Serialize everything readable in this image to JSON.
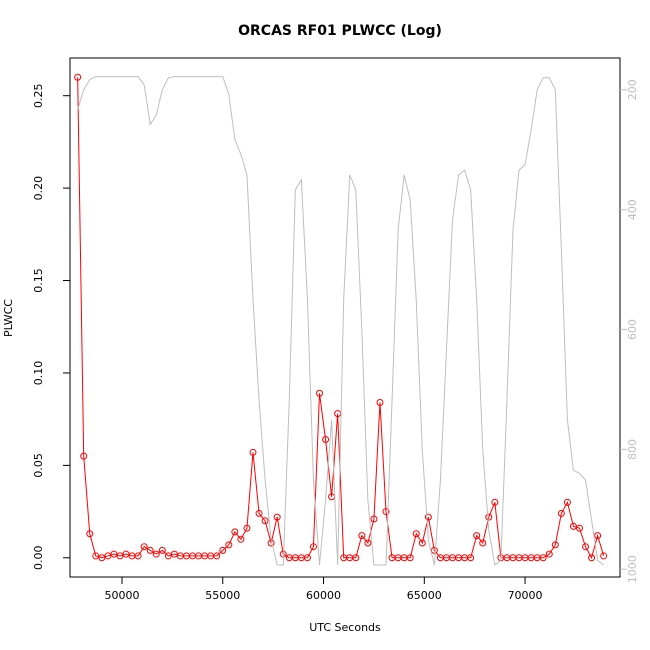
{
  "chart_data": {
    "type": "line",
    "title": "ORCAS RF01 PLWCC (Log)",
    "x_label": "UTC Seconds",
    "y_label": "PLWCC",
    "x": [
      47800,
      48100,
      48400,
      48700,
      49000,
      49300,
      49600,
      49900,
      50200,
      50500,
      50800,
      51100,
      51400,
      51700,
      52000,
      52300,
      52600,
      52900,
      53200,
      53500,
      53800,
      54100,
      54400,
      54700,
      55000,
      55300,
      55600,
      55900,
      56200,
      56500,
      56800,
      57100,
      57400,
      57700,
      58000,
      58300,
      58600,
      58900,
      59200,
      59500,
      59800,
      60100,
      60400,
      60700,
      61000,
      61300,
      61600,
      61900,
      62200,
      62500,
      62800,
      63100,
      63400,
      63700,
      64000,
      64300,
      64600,
      64900,
      65200,
      65500,
      65800,
      66100,
      66400,
      66700,
      67000,
      67300,
      67600,
      67900,
      68200,
      68500,
      68800,
      69100,
      69400,
      69700,
      70000,
      70300,
      70600,
      70900,
      71200,
      71500,
      71800,
      72100,
      72400,
      72700,
      73000,
      73300,
      73600,
      73900
    ],
    "series": [
      {
        "color": "#ff0000",
        "markers": true,
        "axis": "y",
        "values": [
          0.26,
          0.055,
          0.013,
          0.001,
          0.0,
          0.001,
          0.002,
          0.001,
          0.002,
          0.001,
          0.001,
          0.006,
          0.004,
          0.002,
          0.004,
          0.001,
          0.002,
          0.001,
          0.001,
          0.001,
          0.001,
          0.001,
          0.001,
          0.001,
          0.004,
          0.007,
          0.014,
          0.01,
          0.016,
          0.057,
          0.024,
          0.02,
          0.008,
          0.022,
          0.002,
          0.0,
          0.0,
          0.0,
          0.0,
          0.006,
          0.089,
          0.064,
          0.033,
          0.078,
          0.0,
          0.0,
          0.0,
          0.012,
          0.008,
          0.021,
          0.084,
          0.025,
          0.0,
          0.0,
          0.0,
          0.0,
          0.013,
          0.008,
          0.022,
          0.004,
          0.0,
          0.0,
          0.0,
          0.0,
          0.0,
          0.0,
          0.012,
          0.008,
          0.022,
          0.03,
          0.0,
          0.0,
          0.0,
          0.0,
          0.0,
          0.0,
          0.0,
          0.0,
          0.002,
          0.007,
          0.024,
          0.03,
          0.017,
          0.016,
          0.006,
          0.0,
          0.012,
          0.001
        ]
      },
      {
        "color": "#bebebe",
        "markers": false,
        "axis": "y2",
        "values": [
          233,
          200,
          183,
          178,
          178,
          178,
          178,
          178,
          178,
          178,
          178,
          192,
          258,
          242,
          200,
          180,
          178,
          178,
          178,
          178,
          178,
          178,
          178,
          178,
          178,
          208,
          283,
          308,
          342,
          550,
          718,
          851,
          951,
          993,
          993,
          718,
          367,
          350,
          550,
          851,
          993,
          885,
          751,
          993,
          550,
          342,
          367,
          601,
          885,
          993,
          993,
          993,
          718,
          434,
          342,
          384,
          551,
          801,
          951,
          993,
          851,
          634,
          417,
          342,
          334,
          367,
          551,
          801,
          935,
          993,
          985,
          718,
          434,
          334,
          325,
          267,
          200,
          180,
          180,
          200,
          467,
          751,
          835,
          840,
          851,
          918,
          985,
          993
        ]
      }
    ],
    "xlim": [
      47420,
      74710
    ],
    "xticks": [
      50000,
      55000,
      60000,
      65000,
      70000
    ],
    "ylim": [
      -0.0104,
      0.2704
    ],
    "yticks": [
      {
        "value": 0,
        "label": "0.00"
      },
      {
        "value": 0.05,
        "label": "0.05"
      },
      {
        "value": 0.1,
        "label": "0.10"
      },
      {
        "value": 0.15,
        "label": "0.15"
      },
      {
        "value": 0.2,
        "label": "0.20"
      },
      {
        "value": 0.25,
        "label": "0.25"
      }
    ],
    "y2lim": [
      1013,
      147
    ],
    "y2ticks": [
      200,
      400,
      600,
      800,
      1000
    ],
    "y2_color": "#bebebe"
  }
}
